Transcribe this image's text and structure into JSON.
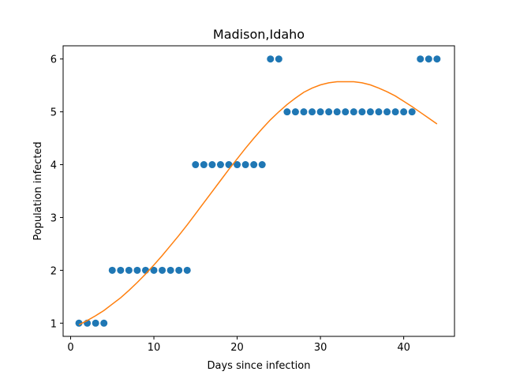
{
  "chart_data": {
    "type": "scatter",
    "title": "Madison,Idaho",
    "xlabel": "Days since infection",
    "ylabel": "Population infected",
    "xlim": [
      -0.9,
      46.1
    ],
    "ylim": [
      0.75,
      6.25
    ],
    "xticks": [
      0,
      10,
      20,
      30,
      40
    ],
    "yticks": [
      1,
      2,
      3,
      4,
      5,
      6
    ],
    "grid": false,
    "series": [
      {
        "type": "scatter",
        "color": "#1f77b4",
        "x": [
          1,
          2,
          3,
          4,
          5,
          6,
          7,
          8,
          9,
          10,
          11,
          12,
          13,
          14,
          15,
          16,
          17,
          18,
          19,
          20,
          21,
          22,
          23,
          24,
          25,
          26,
          27,
          28,
          29,
          30,
          31,
          32,
          33,
          34,
          35,
          36,
          37,
          38,
          39,
          40,
          41,
          42,
          43,
          44
        ],
        "y": [
          1,
          1,
          1,
          1,
          2,
          2,
          2,
          2,
          2,
          2,
          2,
          2,
          2,
          2,
          4,
          4,
          4,
          4,
          4,
          4,
          4,
          4,
          4,
          6,
          6,
          5,
          5,
          5,
          5,
          5,
          5,
          5,
          5,
          5,
          5,
          5,
          5,
          5,
          5,
          5,
          5,
          6,
          6,
          6
        ]
      },
      {
        "type": "line",
        "color": "#ff7f0e",
        "x": [
          1,
          2,
          3,
          4,
          5,
          6,
          7,
          8,
          9,
          10,
          11,
          12,
          13,
          14,
          15,
          16,
          17,
          18,
          19,
          20,
          21,
          22,
          23,
          24,
          25,
          26,
          27,
          28,
          29,
          30,
          31,
          32,
          33,
          34,
          35,
          36,
          37,
          38,
          39,
          40,
          41,
          42,
          43,
          44
        ],
        "y": [
          0.97,
          1.05,
          1.14,
          1.24,
          1.36,
          1.48,
          1.62,
          1.77,
          1.93,
          2.1,
          2.28,
          2.47,
          2.66,
          2.86,
          3.07,
          3.28,
          3.49,
          3.7,
          3.91,
          4.11,
          4.31,
          4.5,
          4.68,
          4.85,
          5.0,
          5.14,
          5.26,
          5.37,
          5.45,
          5.51,
          5.55,
          5.57,
          5.57,
          5.57,
          5.55,
          5.51,
          5.45,
          5.38,
          5.3,
          5.2,
          5.1,
          4.99,
          4.88,
          4.77
        ]
      }
    ]
  }
}
